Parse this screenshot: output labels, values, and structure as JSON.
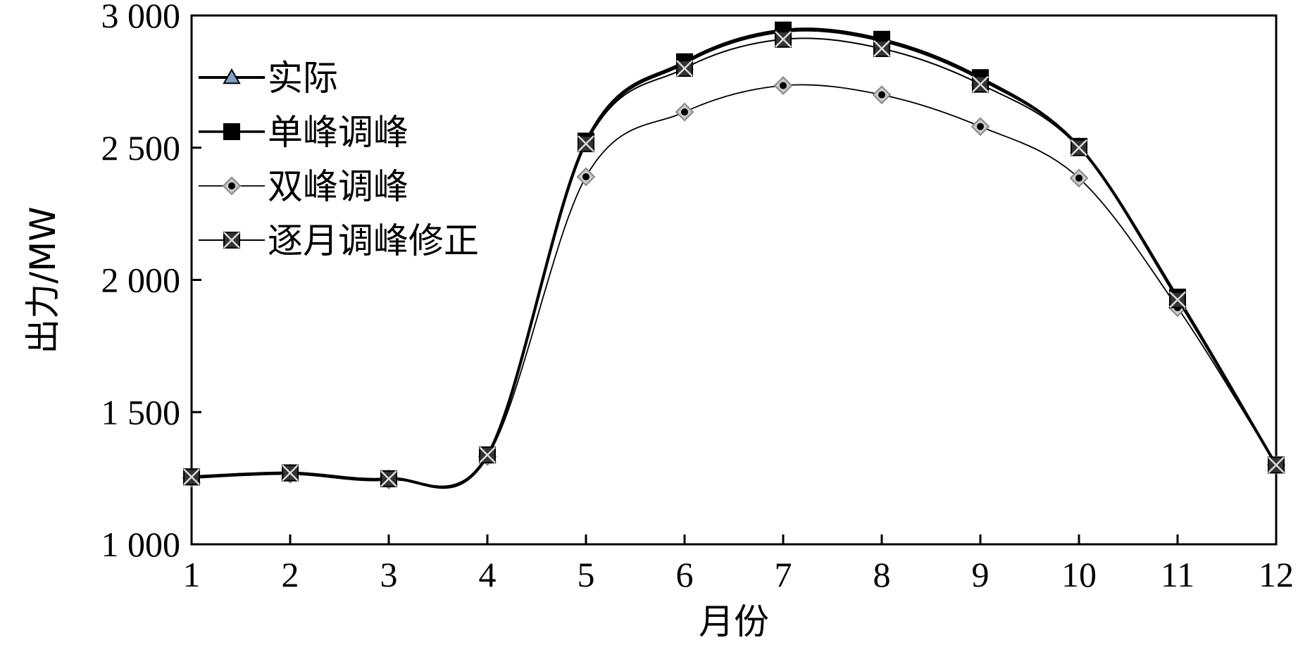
{
  "chart_data": {
    "type": "line",
    "xlabel": "月份",
    "ylabel": "出力/MW",
    "x": [
      1,
      2,
      3,
      4,
      5,
      6,
      7,
      8,
      9,
      10,
      11,
      12
    ],
    "xticks": [
      "1",
      "2",
      "3",
      "4",
      "5",
      "6",
      "7",
      "8",
      "9",
      "10",
      "11",
      "12"
    ],
    "yticks": [
      1000,
      1500,
      2000,
      2500,
      3000
    ],
    "ytick_labels": [
      "1 000",
      "1 500",
      "2 000",
      "2 500",
      "3 000"
    ],
    "xlim": [
      1,
      12
    ],
    "ylim": [
      1000,
      3000
    ],
    "grid": false,
    "legend_position": "top-left",
    "series": [
      {
        "name": "实际",
        "marker": "triangle",
        "color": "#000000",
        "marker_fill": "#7f9fc8",
        "values": [
          1255,
          1270,
          1248,
          1335,
          2520,
          2820,
          2940,
          2905,
          2760,
          2505,
          1930,
          1300
        ]
      },
      {
        "name": "单峰调峰",
        "marker": "square",
        "color": "#000000",
        "marker_fill": "#000000",
        "values": [
          1255,
          1270,
          1248,
          1338,
          2525,
          2825,
          2945,
          2910,
          2765,
          2505,
          1935,
          1300
        ]
      },
      {
        "name": "双峰调峰",
        "marker": "diamond",
        "color": "#000000",
        "marker_fill": "#c8c8c8",
        "values": [
          1250,
          1265,
          1243,
          1332,
          2390,
          2635,
          2735,
          2700,
          2580,
          2385,
          1895,
          1300
        ]
      },
      {
        "name": "逐月调峰修正",
        "marker": "x-square",
        "color": "#000000",
        "marker_fill": "#333333",
        "values": [
          1255,
          1270,
          1248,
          1338,
          2515,
          2800,
          2910,
          2875,
          2740,
          2500,
          1925,
          1300
        ]
      }
    ]
  }
}
